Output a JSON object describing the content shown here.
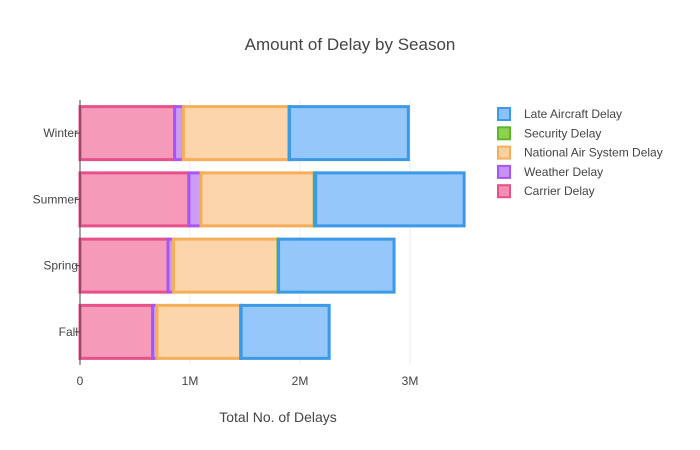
{
  "chart_data": {
    "type": "bar",
    "orientation": "horizontal",
    "barmode": "stack",
    "title": "Amount of Delay by Season",
    "xlabel": "Total No. of Delays",
    "ylabel": "",
    "categories": [
      "Fall",
      "Spring",
      "Summer",
      "Winter"
    ],
    "xlim": [
      0,
      3600000
    ],
    "x_ticks": [
      {
        "value": 0,
        "label": "0"
      },
      {
        "value": 1000000,
        "label": "1M"
      },
      {
        "value": 2000000,
        "label": "2M"
      },
      {
        "value": 3000000,
        "label": "3M"
      }
    ],
    "grid": true,
    "legend_position": "top-right",
    "series": [
      {
        "name": "Carrier Delay",
        "fill": "#f48fb1",
        "line": "#e8508a",
        "values": [
          660000,
          800000,
          990000,
          860000
        ]
      },
      {
        "name": "Weather Delay",
        "fill": "#c792f5",
        "line": "#a855f7",
        "values": [
          40000,
          50000,
          110000,
          80000
        ]
      },
      {
        "name": "National Air System Delay",
        "fill": "#fdd0a2",
        "line": "#f6ae5a",
        "values": [
          760000,
          950000,
          1030000,
          960000
        ]
      },
      {
        "name": "Security Delay",
        "fill": "#8fd14f",
        "line": "#5cb82a",
        "values": [
          5000,
          5000,
          12000,
          5000
        ]
      },
      {
        "name": "Late Aircraft Delay",
        "fill": "#8ac1fa",
        "line": "#3b99e8",
        "values": [
          800000,
          1050000,
          1350000,
          1080000
        ]
      }
    ],
    "legend_order": [
      "Late Aircraft Delay",
      "Security Delay",
      "National Air System Delay",
      "Weather Delay",
      "Carrier Delay"
    ]
  }
}
